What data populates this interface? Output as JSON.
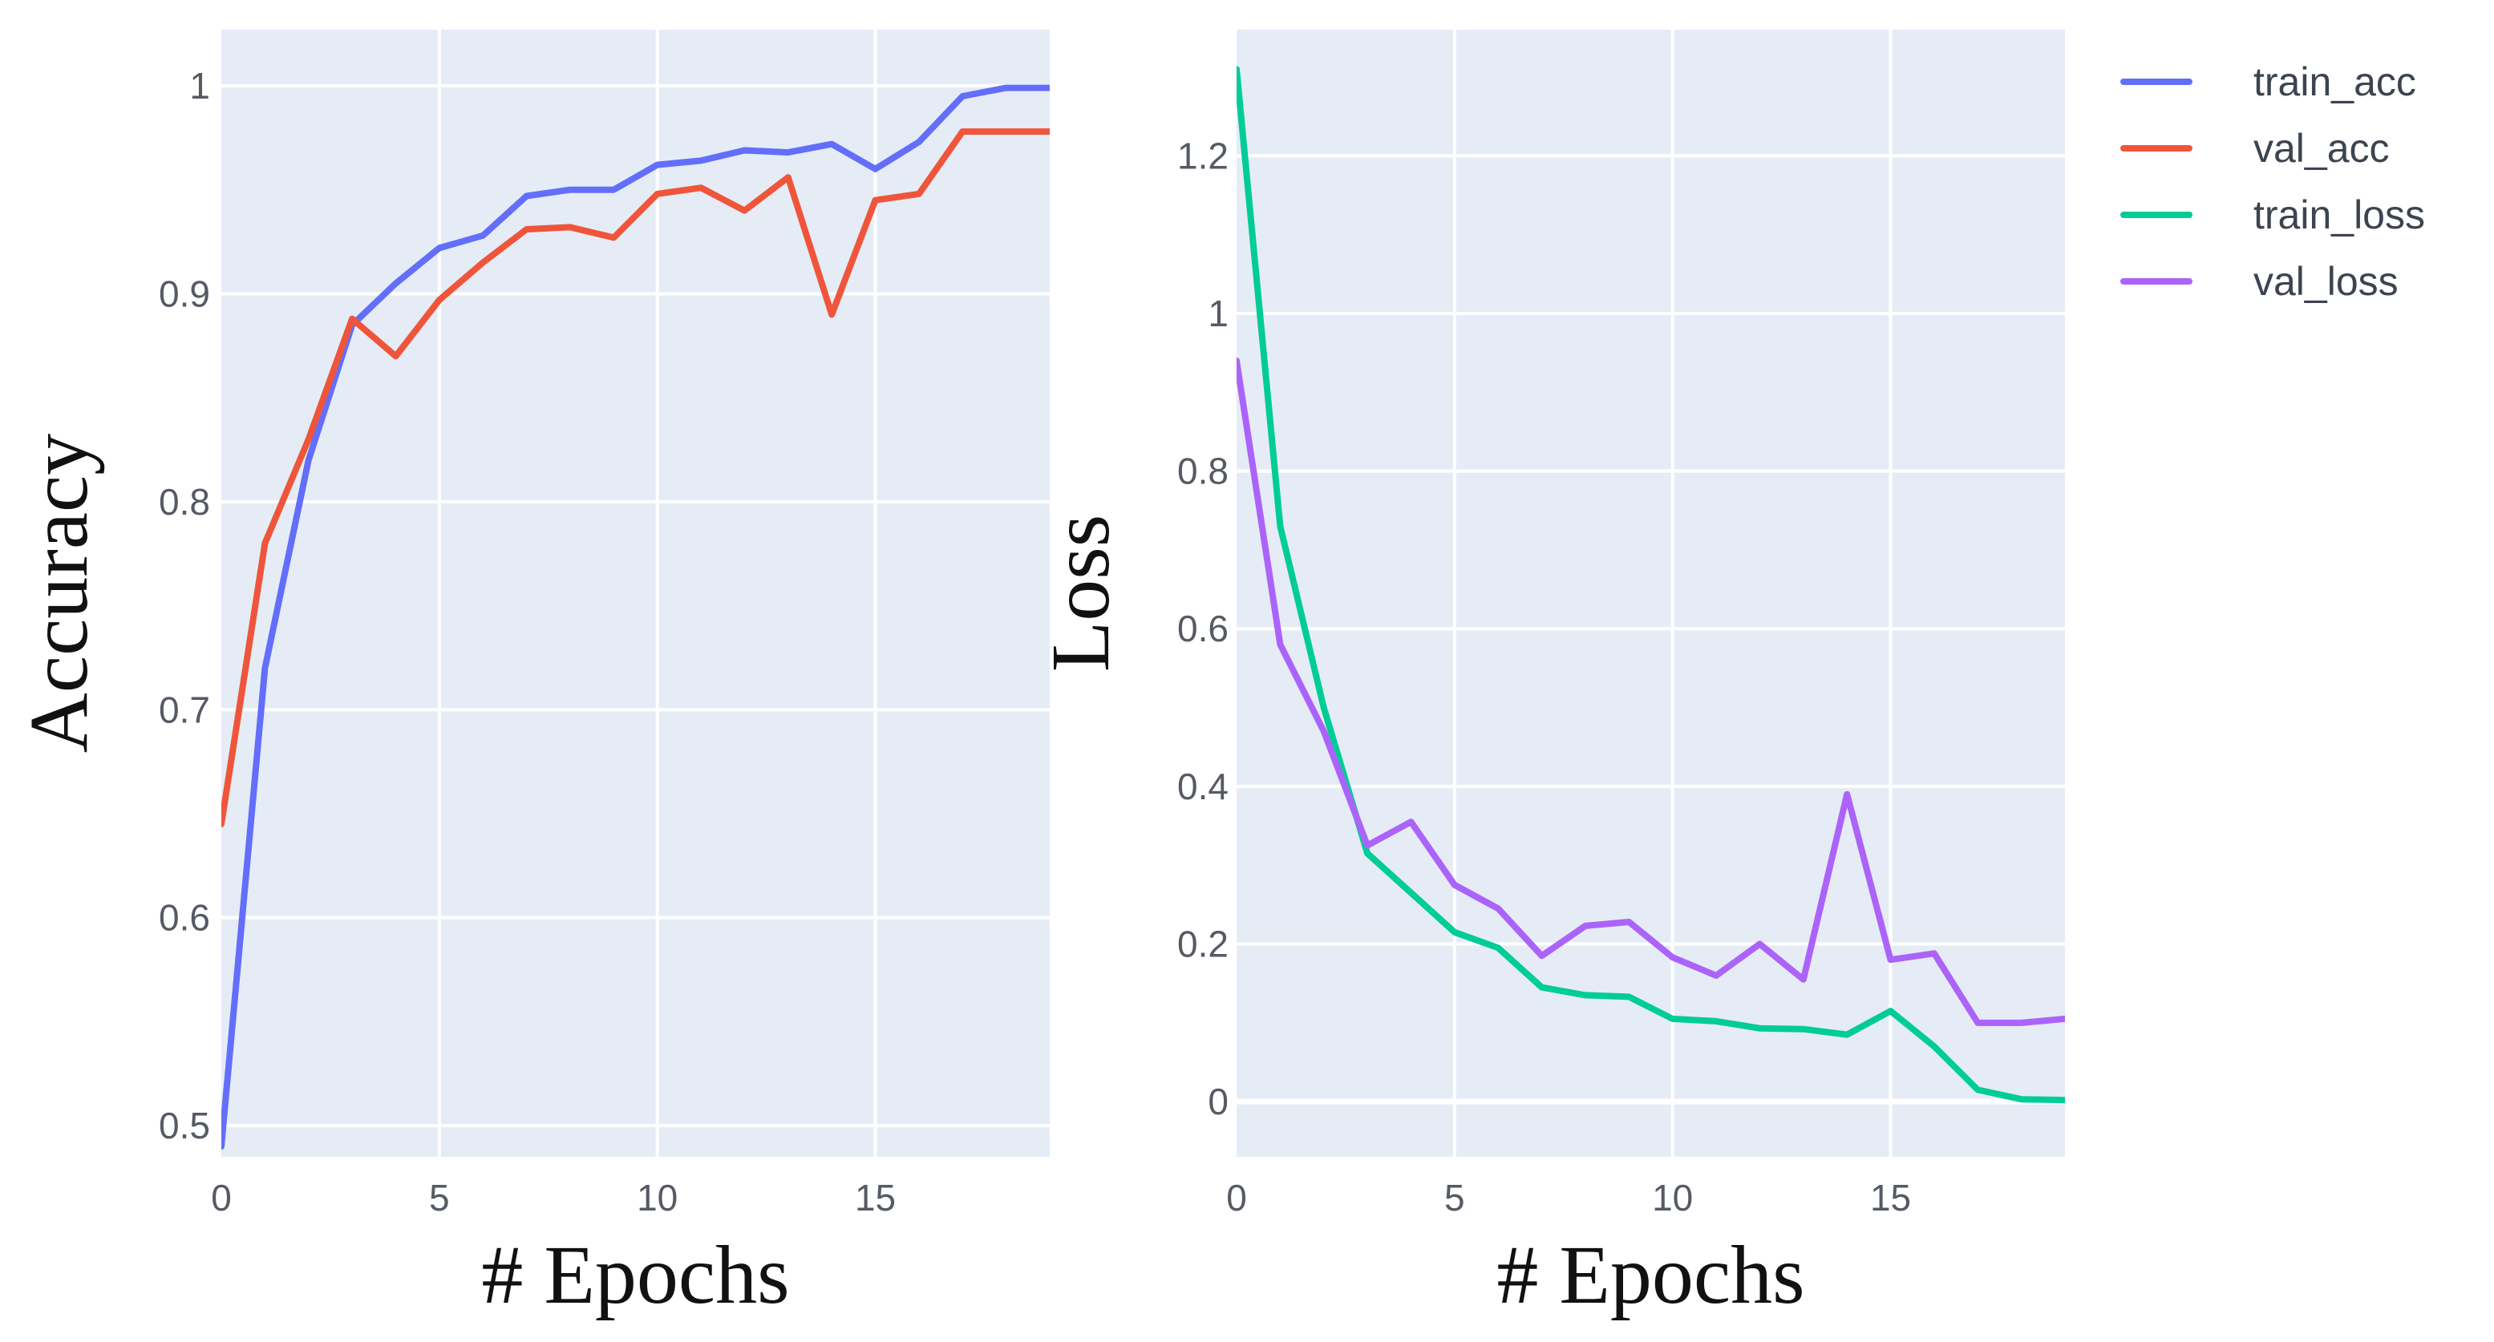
{
  "colors": {
    "plot_bg": "#e5ecf6",
    "grid": "#ffffff",
    "train_acc": "#636efa",
    "val_acc": "#ef553b",
    "train_loss": "#00cc96",
    "val_loss": "#ab63fa"
  },
  "legend": {
    "position": "top-right",
    "items": [
      {
        "key": "train_acc",
        "label": "train_acc"
      },
      {
        "key": "val_acc",
        "label": "val_acc"
      },
      {
        "key": "train_loss",
        "label": "train_loss"
      },
      {
        "key": "val_loss",
        "label": "val_loss"
      }
    ]
  },
  "chart_data": [
    {
      "type": "line",
      "title": "",
      "xlabel": "# Epochs",
      "ylabel": "Accuracy",
      "xlim": [
        0,
        19
      ],
      "ylim": [
        0.485,
        1.027
      ],
      "grid": true,
      "xticks": [
        0,
        5,
        10,
        15
      ],
      "xtick_labels": [
        "0",
        "5",
        "10",
        "15"
      ],
      "yticks": [
        0.5,
        0.6,
        0.7,
        0.8,
        0.9,
        1.0
      ],
      "ytick_labels": [
        "0.5",
        "0.6",
        "0.7",
        "0.8",
        "0.9",
        "1"
      ],
      "x": [
        0,
        1,
        2,
        3,
        4,
        5,
        6,
        7,
        8,
        9,
        10,
        11,
        12,
        13,
        14,
        15,
        16,
        17,
        18,
        19
      ],
      "series": [
        {
          "key": "train_acc",
          "name": "train_acc",
          "values": [
            0.49,
            0.72,
            0.82,
            0.885,
            0.905,
            0.922,
            0.928,
            0.947,
            0.95,
            0.95,
            0.962,
            0.964,
            0.969,
            0.968,
            0.972,
            0.96,
            0.973,
            0.995,
            0.999,
            0.999
          ]
        },
        {
          "key": "val_acc",
          "name": "val_acc",
          "values": [
            0.645,
            0.78,
            0.83,
            0.888,
            0.87,
            0.897,
            0.915,
            0.931,
            0.932,
            0.927,
            0.948,
            0.951,
            0.94,
            0.956,
            0.89,
            0.945,
            0.948,
            0.978,
            0.978,
            0.978
          ]
        }
      ]
    },
    {
      "type": "line",
      "title": "",
      "xlabel": "# Epochs",
      "ylabel": "Loss",
      "xlim": [
        0,
        19
      ],
      "ylim": [
        -0.07,
        1.36
      ],
      "grid": true,
      "xticks": [
        0,
        5,
        10,
        15
      ],
      "xtick_labels": [
        "0",
        "5",
        "10",
        "15"
      ],
      "yticks": [
        0,
        0.2,
        0.4,
        0.6,
        0.8,
        1.0,
        1.2
      ],
      "ytick_labels": [
        "0",
        "0.2",
        "0.4",
        "0.6",
        "0.8",
        "1",
        "1.2"
      ],
      "x": [
        0,
        1,
        2,
        3,
        4,
        5,
        6,
        7,
        8,
        9,
        10,
        11,
        12,
        13,
        14,
        15,
        16,
        17,
        18,
        19
      ],
      "series": [
        {
          "key": "train_loss",
          "name": "train_loss",
          "values": [
            1.31,
            0.73,
            0.5,
            0.315,
            0.265,
            0.215,
            0.195,
            0.145,
            0.135,
            0.133,
            0.105,
            0.102,
            0.093,
            0.092,
            0.085,
            0.115,
            0.07,
            0.015,
            0.003,
            0.002
          ]
        },
        {
          "key": "val_loss",
          "name": "val_loss",
          "values": [
            0.94,
            0.58,
            0.47,
            0.325,
            0.355,
            0.275,
            0.245,
            0.185,
            0.223,
            0.228,
            0.183,
            0.16,
            0.2,
            0.155,
            0.39,
            0.18,
            0.188,
            0.1,
            0.1,
            0.105
          ]
        }
      ]
    }
  ]
}
